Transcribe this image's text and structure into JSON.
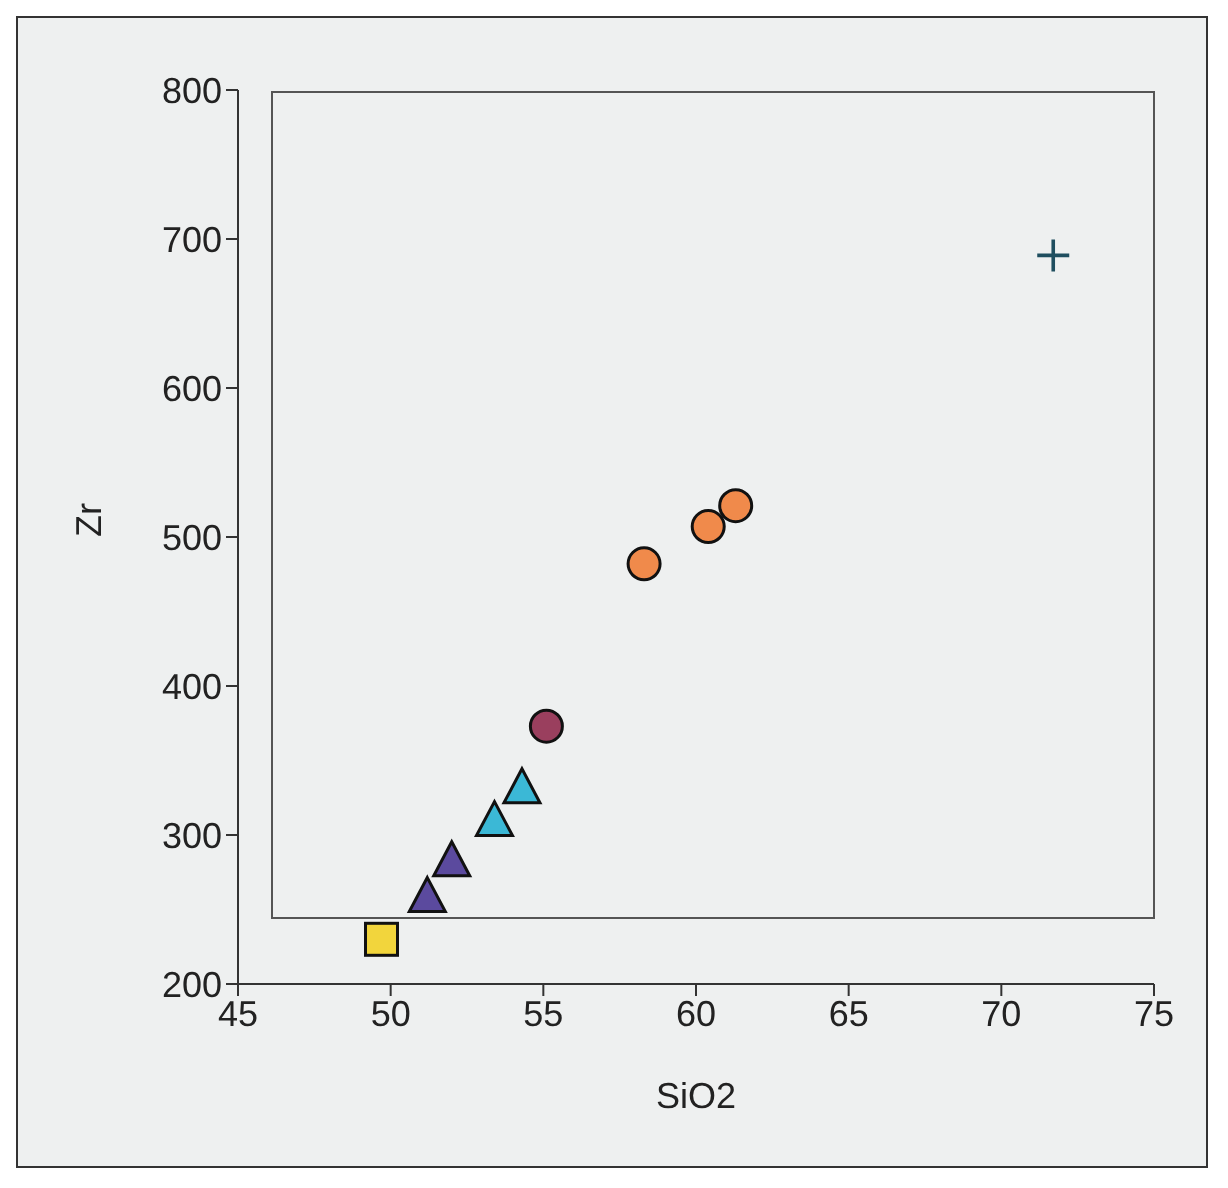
{
  "chart_data": {
    "type": "scatter",
    "xlabel": "SiO2",
    "ylabel": "Zr",
    "xlim": [
      45,
      75
    ],
    "xticks": [
      45,
      50,
      55,
      60,
      65,
      70,
      75
    ],
    "ylim": [
      200,
      800
    ],
    "yticks": [
      200,
      300,
      400,
      500,
      600,
      700,
      800
    ],
    "grid": false,
    "legend": false,
    "series": [
      {
        "color": "#f2d53c",
        "marker": "square",
        "x": [
          49.7
        ],
        "values": [
          230
        ]
      },
      {
        "color": "#5b4a9e",
        "marker": "triangle",
        "x": [
          51.2,
          52.0
        ],
        "values": [
          258,
          282
        ]
      },
      {
        "color": "#3bb8d6",
        "marker": "triangle",
        "x": [
          53.4,
          54.3
        ],
        "values": [
          309,
          331
        ]
      },
      {
        "color": "#9a3f5e",
        "marker": "circle",
        "x": [
          55.1
        ],
        "values": [
          373
        ]
      },
      {
        "color": "#f08a4b",
        "marker": "circle",
        "x": [
          58.3,
          60.4,
          61.3
        ],
        "values": [
          482,
          507,
          521
        ]
      },
      {
        "color": "#1f4e5f",
        "marker": "cross",
        "x": [
          71.7
        ],
        "values": [
          689
        ]
      }
    ]
  }
}
